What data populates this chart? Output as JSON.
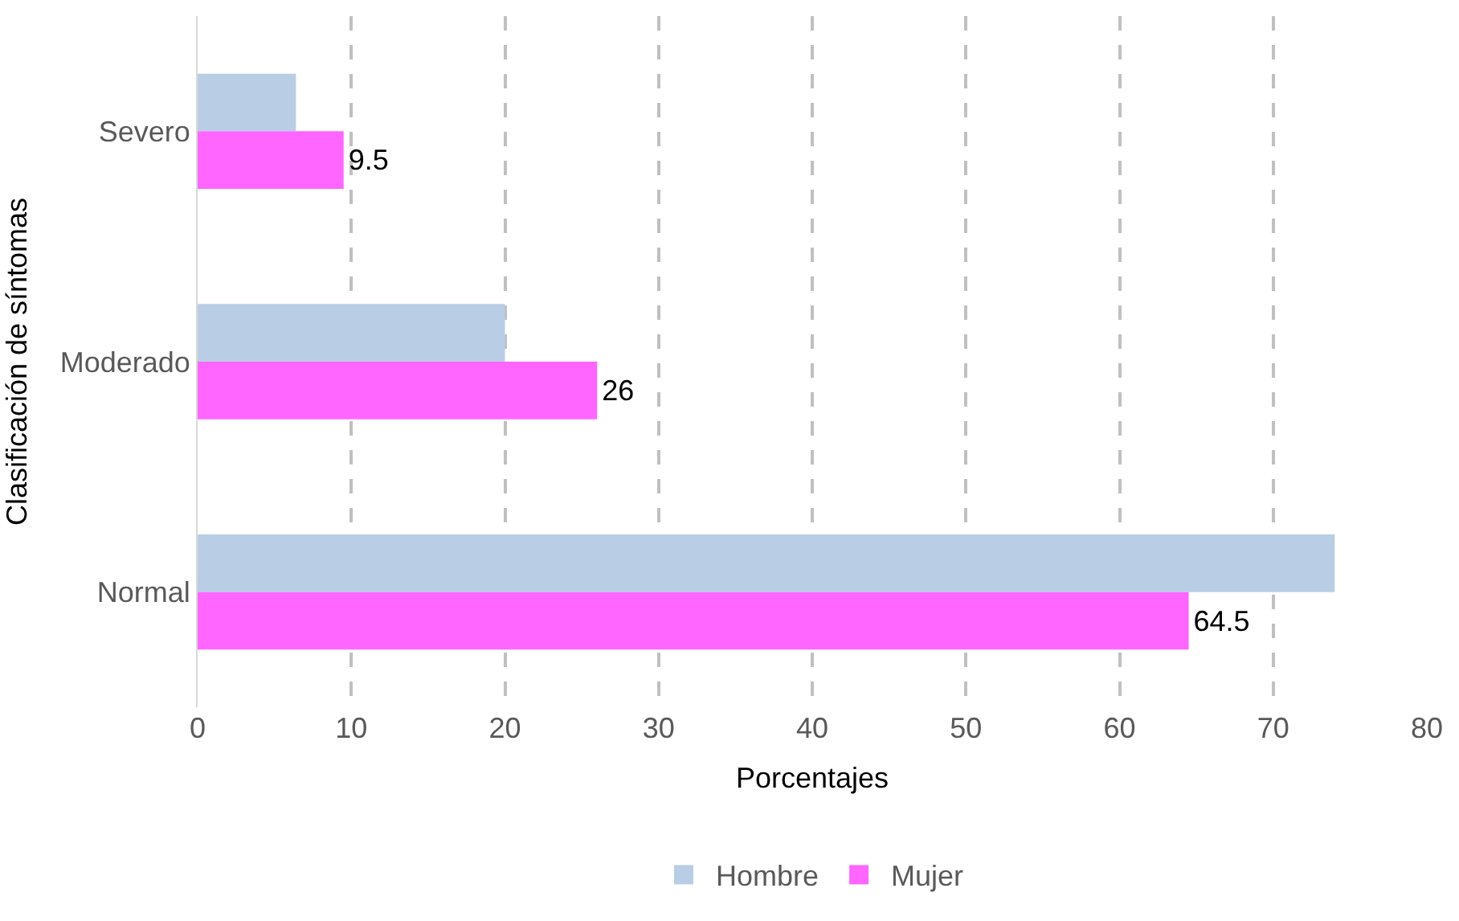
{
  "chart_data": {
    "type": "bar",
    "orientation": "horizontal",
    "xlabel": "Porcentajes",
    "ylabel": "Clasificación de síntomas",
    "categories": [
      "Severo",
      "Moderado",
      "Normal"
    ],
    "series": [
      {
        "name": "Hombre",
        "color": "#b9cde5",
        "values": [
          6.4,
          20,
          74
        ]
      },
      {
        "name": "Mujer",
        "color": "#ff66ff",
        "values": [
          9.5,
          26,
          64.5
        ],
        "value_labels": [
          "9.5",
          "26",
          "64.5"
        ]
      }
    ],
    "xlim": [
      0,
      80
    ],
    "xticks": [
      0,
      10,
      20,
      30,
      40,
      50,
      60,
      70,
      80
    ],
    "grid": "x",
    "legend": "bottom"
  }
}
